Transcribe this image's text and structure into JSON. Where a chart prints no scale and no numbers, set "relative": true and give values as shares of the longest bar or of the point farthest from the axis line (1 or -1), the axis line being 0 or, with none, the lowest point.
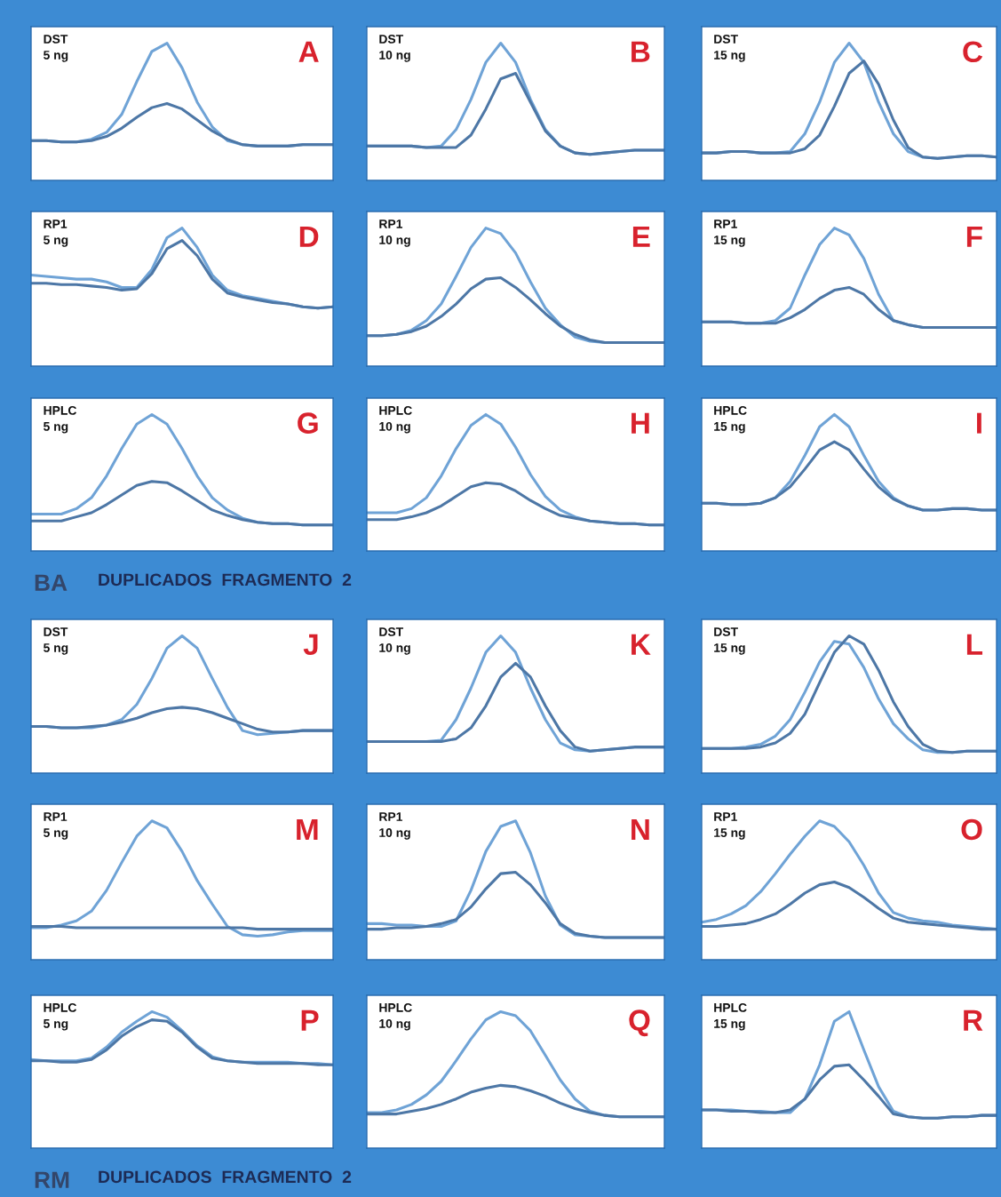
{
  "chart_data": [
    {
      "type": "line",
      "relative": true,
      "categories": [
        null,
        null,
        null,
        null,
        null,
        null,
        null,
        null,
        null,
        null,
        null,
        null,
        null,
        null,
        null,
        null,
        null,
        null,
        null,
        null,
        null
      ],
      "series": [
        {
          "color": "#6fa3d6",
          "values": [
            0.29,
            0.29,
            0.28,
            0.28,
            0.3,
            0.35,
            0.48,
            0.72,
            0.94,
            1,
            0.82,
            0.57,
            0.39,
            0.29,
            0.26,
            0.25,
            0.25,
            0.25,
            0.26,
            0.26,
            0.26
          ]
        },
        {
          "color": "#4d77a6",
          "values": [
            0.29,
            0.29,
            0.28,
            0.28,
            0.29,
            0.32,
            0.38,
            0.46,
            0.53,
            0.56,
            0.52,
            0.44,
            0.36,
            0.3,
            0.26,
            0.25,
            0.25,
            0.25,
            0.26,
            0.26,
            0.26
          ]
        }
      ],
      "annotations": [
        "DST",
        "5 ng",
        "A"
      ]
    },
    {
      "type": "line",
      "relative": true,
      "categories": [
        null,
        null,
        null,
        null,
        null,
        null,
        null,
        null,
        null,
        null,
        null,
        null,
        null,
        null,
        null,
        null,
        null,
        null,
        null,
        null,
        null
      ],
      "series": [
        {
          "color": "#6fa3d6",
          "values": [
            0.25,
            0.25,
            0.25,
            0.25,
            0.24,
            0.25,
            0.37,
            0.59,
            0.86,
            1,
            0.86,
            0.59,
            0.37,
            0.25,
            0.2,
            0.19,
            0.2,
            0.21,
            0.22,
            0.22,
            0.22
          ]
        },
        {
          "color": "#4d77a6",
          "values": [
            0.25,
            0.25,
            0.25,
            0.25,
            0.24,
            0.24,
            0.24,
            0.33,
            0.52,
            0.74,
            0.78,
            0.57,
            0.36,
            0.25,
            0.2,
            0.19,
            0.2,
            0.21,
            0.22,
            0.22,
            0.22
          ]
        }
      ],
      "annotations": [
        "DST",
        "10 ng",
        "B"
      ]
    },
    {
      "type": "line",
      "relative": true,
      "categories": [
        null,
        null,
        null,
        null,
        null,
        null,
        null,
        null,
        null,
        null,
        null,
        null,
        null,
        null,
        null,
        null,
        null,
        null,
        null,
        null,
        null
      ],
      "series": [
        {
          "color": "#6fa3d6",
          "values": [
            0.2,
            0.2,
            0.21,
            0.21,
            0.2,
            0.2,
            0.21,
            0.34,
            0.57,
            0.86,
            1,
            0.86,
            0.57,
            0.34,
            0.21,
            0.17,
            0.16,
            0.17,
            0.18,
            0.18,
            0.17
          ]
        },
        {
          "color": "#4d77a6",
          "values": [
            0.2,
            0.2,
            0.21,
            0.21,
            0.2,
            0.2,
            0.2,
            0.23,
            0.33,
            0.54,
            0.78,
            0.87,
            0.7,
            0.44,
            0.24,
            0.17,
            0.16,
            0.17,
            0.18,
            0.18,
            0.17
          ]
        }
      ],
      "annotations": [
        "DST",
        "15 ng",
        "C"
      ]
    },
    {
      "type": "line",
      "relative": true,
      "categories": [
        null,
        null,
        null,
        null,
        null,
        null,
        null,
        null,
        null,
        null,
        null,
        null,
        null,
        null,
        null,
        null,
        null,
        null,
        null,
        null,
        null
      ],
      "series": [
        {
          "color": "#6fa3d6",
          "values": [
            0.66,
            0.65,
            0.64,
            0.63,
            0.63,
            0.61,
            0.57,
            0.57,
            0.7,
            0.93,
            1,
            0.86,
            0.66,
            0.55,
            0.51,
            0.49,
            0.47,
            0.45,
            0.43,
            0.42,
            0.43
          ]
        },
        {
          "color": "#4d77a6",
          "values": [
            0.6,
            0.6,
            0.59,
            0.59,
            0.58,
            0.57,
            0.55,
            0.56,
            0.67,
            0.85,
            0.91,
            0.8,
            0.63,
            0.53,
            0.5,
            0.48,
            0.46,
            0.45,
            0.43,
            0.42,
            0.43
          ]
        }
      ],
      "annotations": [
        "RP1",
        "5 ng",
        "D"
      ]
    },
    {
      "type": "line",
      "relative": true,
      "categories": [
        null,
        null,
        null,
        null,
        null,
        null,
        null,
        null,
        null,
        null,
        null,
        null,
        null,
        null,
        null,
        null,
        null,
        null,
        null,
        null,
        null
      ],
      "series": [
        {
          "color": "#6fa3d6",
          "values": [
            0.22,
            0.22,
            0.23,
            0.26,
            0.33,
            0.45,
            0.65,
            0.86,
            1,
            0.96,
            0.82,
            0.61,
            0.42,
            0.3,
            0.21,
            0.18,
            0.17,
            0.17,
            0.17,
            0.17,
            0.17
          ]
        },
        {
          "color": "#4d77a6",
          "values": [
            0.22,
            0.22,
            0.23,
            0.25,
            0.29,
            0.36,
            0.45,
            0.56,
            0.63,
            0.64,
            0.57,
            0.48,
            0.38,
            0.29,
            0.23,
            0.19,
            0.17,
            0.17,
            0.17,
            0.17,
            0.17
          ]
        }
      ],
      "annotations": [
        "RP1",
        "10 ng",
        "E"
      ]
    },
    {
      "type": "line",
      "relative": true,
      "categories": [
        null,
        null,
        null,
        null,
        null,
        null,
        null,
        null,
        null,
        null,
        null,
        null,
        null,
        null,
        null,
        null,
        null,
        null,
        null,
        null,
        null
      ],
      "series": [
        {
          "color": "#6fa3d6",
          "values": [
            0.32,
            0.32,
            0.32,
            0.31,
            0.31,
            0.33,
            0.42,
            0.66,
            0.88,
            1,
            0.95,
            0.78,
            0.52,
            0.33,
            0.3,
            0.28,
            0.28,
            0.28,
            0.28,
            0.28,
            0.28
          ]
        },
        {
          "color": "#4d77a6",
          "values": [
            0.32,
            0.32,
            0.32,
            0.31,
            0.31,
            0.31,
            0.35,
            0.41,
            0.49,
            0.55,
            0.57,
            0.52,
            0.41,
            0.33,
            0.3,
            0.28,
            0.28,
            0.28,
            0.28,
            0.28,
            0.28
          ]
        }
      ],
      "annotations": [
        "RP1",
        "15 ng",
        "F"
      ]
    },
    {
      "type": "line",
      "relative": true,
      "categories": [
        null,
        null,
        null,
        null,
        null,
        null,
        null,
        null,
        null,
        null,
        null,
        null,
        null,
        null,
        null,
        null,
        null,
        null,
        null,
        null,
        null
      ],
      "series": [
        {
          "color": "#6fa3d6",
          "values": [
            0.27,
            0.27,
            0.27,
            0.31,
            0.39,
            0.55,
            0.75,
            0.93,
            1,
            0.93,
            0.75,
            0.55,
            0.39,
            0.3,
            0.24,
            0.21,
            0.2,
            0.2,
            0.19,
            0.19,
            0.19
          ]
        },
        {
          "color": "#4d77a6",
          "values": [
            0.22,
            0.22,
            0.22,
            0.25,
            0.28,
            0.34,
            0.41,
            0.48,
            0.51,
            0.5,
            0.44,
            0.37,
            0.3,
            0.26,
            0.23,
            0.21,
            0.2,
            0.2,
            0.19,
            0.19,
            0.19
          ]
        }
      ],
      "annotations": [
        "HPLC",
        "5 ng",
        "G",
        "BA",
        "DUPLICADOS  FRAGMENTO  2"
      ]
    },
    {
      "type": "line",
      "relative": true,
      "categories": [
        null,
        null,
        null,
        null,
        null,
        null,
        null,
        null,
        null,
        null,
        null,
        null,
        null,
        null,
        null,
        null,
        null,
        null,
        null,
        null,
        null
      ],
      "series": [
        {
          "color": "#6fa3d6",
          "values": [
            0.28,
            0.28,
            0.28,
            0.31,
            0.39,
            0.55,
            0.75,
            0.92,
            1,
            0.93,
            0.76,
            0.56,
            0.4,
            0.3,
            0.25,
            0.22,
            0.21,
            0.2,
            0.2,
            0.19,
            0.19
          ]
        },
        {
          "color": "#4d77a6",
          "values": [
            0.23,
            0.23,
            0.23,
            0.25,
            0.28,
            0.33,
            0.4,
            0.47,
            0.5,
            0.49,
            0.44,
            0.37,
            0.31,
            0.26,
            0.24,
            0.22,
            0.21,
            0.2,
            0.2,
            0.19,
            0.19
          ]
        }
      ],
      "annotations": [
        "HPLC",
        "10 ng",
        "H"
      ]
    },
    {
      "type": "line",
      "relative": true,
      "categories": [
        null,
        null,
        null,
        null,
        null,
        null,
        null,
        null,
        null,
        null,
        null,
        null,
        null,
        null,
        null,
        null,
        null,
        null,
        null,
        null,
        null
      ],
      "series": [
        {
          "color": "#6fa3d6",
          "values": [
            0.35,
            0.35,
            0.34,
            0.34,
            0.35,
            0.39,
            0.51,
            0.7,
            0.91,
            1,
            0.91,
            0.7,
            0.51,
            0.39,
            0.33,
            0.3,
            0.3,
            0.31,
            0.31,
            0.3,
            0.3
          ]
        },
        {
          "color": "#4d77a6",
          "values": [
            0.35,
            0.35,
            0.34,
            0.34,
            0.35,
            0.39,
            0.47,
            0.6,
            0.74,
            0.8,
            0.74,
            0.6,
            0.47,
            0.38,
            0.33,
            0.3,
            0.3,
            0.31,
            0.31,
            0.3,
            0.3
          ]
        }
      ],
      "annotations": [
        "HPLC",
        "15 ng",
        "I"
      ]
    },
    {
      "type": "line",
      "relative": true,
      "categories": [
        null,
        null,
        null,
        null,
        null,
        null,
        null,
        null,
        null,
        null,
        null,
        null,
        null,
        null,
        null,
        null,
        null,
        null,
        null,
        null,
        null
      ],
      "series": [
        {
          "color": "#6fa3d6",
          "values": [
            0.34,
            0.34,
            0.33,
            0.33,
            0.33,
            0.35,
            0.39,
            0.5,
            0.69,
            0.91,
            1,
            0.91,
            0.69,
            0.48,
            0.31,
            0.28,
            0.29,
            0.3,
            0.31,
            0.31,
            0.31
          ]
        },
        {
          "color": "#4d77a6",
          "values": [
            0.34,
            0.34,
            0.33,
            0.33,
            0.34,
            0.35,
            0.37,
            0.4,
            0.44,
            0.47,
            0.48,
            0.47,
            0.44,
            0.4,
            0.36,
            0.32,
            0.3,
            0.3,
            0.31,
            0.31,
            0.31
          ]
        }
      ],
      "annotations": [
        "DST",
        "5 ng",
        "J"
      ]
    },
    {
      "type": "line",
      "relative": true,
      "categories": [
        null,
        null,
        null,
        null,
        null,
        null,
        null,
        null,
        null,
        null,
        null,
        null,
        null,
        null,
        null,
        null,
        null,
        null,
        null,
        null,
        null
      ],
      "series": [
        {
          "color": "#6fa3d6",
          "values": [
            0.23,
            0.23,
            0.23,
            0.23,
            0.23,
            0.24,
            0.39,
            0.62,
            0.88,
            1,
            0.88,
            0.62,
            0.39,
            0.22,
            0.17,
            0.16,
            0.17,
            0.18,
            0.19,
            0.19,
            0.19
          ]
        },
        {
          "color": "#4d77a6",
          "values": [
            0.23,
            0.23,
            0.23,
            0.23,
            0.23,
            0.23,
            0.25,
            0.33,
            0.49,
            0.7,
            0.8,
            0.7,
            0.49,
            0.31,
            0.19,
            0.16,
            0.17,
            0.18,
            0.19,
            0.19,
            0.19
          ]
        }
      ],
      "annotations": [
        "DST",
        "10 ng",
        "K"
      ]
    },
    {
      "type": "line",
      "relative": true,
      "categories": [
        null,
        null,
        null,
        null,
        null,
        null,
        null,
        null,
        null,
        null,
        null,
        null,
        null,
        null,
        null,
        null,
        null,
        null,
        null,
        null,
        null
      ],
      "series": [
        {
          "color": "#6fa3d6",
          "values": [
            0.18,
            0.18,
            0.18,
            0.19,
            0.21,
            0.27,
            0.39,
            0.59,
            0.81,
            0.96,
            0.94,
            0.77,
            0.54,
            0.36,
            0.25,
            0.17,
            0.15,
            0.15,
            0.16,
            0.16,
            0.16
          ]
        },
        {
          "color": "#4d77a6",
          "values": [
            0.18,
            0.18,
            0.18,
            0.18,
            0.19,
            0.22,
            0.29,
            0.43,
            0.66,
            0.88,
            1,
            0.94,
            0.75,
            0.52,
            0.34,
            0.21,
            0.16,
            0.15,
            0.16,
            0.16,
            0.16
          ]
        }
      ],
      "annotations": [
        "DST",
        "15 ng",
        "L"
      ]
    },
    {
      "type": "line",
      "relative": true,
      "categories": [
        null,
        null,
        null,
        null,
        null,
        null,
        null,
        null,
        null,
        null,
        null,
        null,
        null,
        null,
        null,
        null,
        null,
        null,
        null,
        null,
        null
      ],
      "series": [
        {
          "color": "#6fa3d6",
          "values": [
            0.23,
            0.23,
            0.25,
            0.28,
            0.35,
            0.5,
            0.7,
            0.89,
            1,
            0.95,
            0.78,
            0.57,
            0.4,
            0.24,
            0.18,
            0.17,
            0.18,
            0.2,
            0.21,
            0.21,
            0.21
          ]
        },
        {
          "color": "#4d77a6",
          "values": [
            0.24,
            0.24,
            0.24,
            0.23,
            0.23,
            0.23,
            0.23,
            0.23,
            0.23,
            0.23,
            0.23,
            0.23,
            0.23,
            0.23,
            0.23,
            0.22,
            0.22,
            0.22,
            0.22,
            0.22,
            0.22
          ]
        }
      ],
      "annotations": [
        "RP1",
        "5 ng",
        "M"
      ]
    },
    {
      "type": "line",
      "relative": true,
      "categories": [
        null,
        null,
        null,
        null,
        null,
        null,
        null,
        null,
        null,
        null,
        null,
        null,
        null,
        null,
        null,
        null,
        null,
        null,
        null,
        null,
        null
      ],
      "series": [
        {
          "color": "#6fa3d6",
          "values": [
            0.26,
            0.26,
            0.25,
            0.25,
            0.24,
            0.24,
            0.28,
            0.5,
            0.78,
            0.96,
            1,
            0.77,
            0.46,
            0.25,
            0.18,
            0.17,
            0.16,
            0.16,
            0.16,
            0.16,
            0.16
          ]
        },
        {
          "color": "#4d77a6",
          "values": [
            0.22,
            0.22,
            0.23,
            0.23,
            0.24,
            0.26,
            0.29,
            0.38,
            0.51,
            0.62,
            0.63,
            0.54,
            0.41,
            0.26,
            0.19,
            0.17,
            0.16,
            0.16,
            0.16,
            0.16,
            0.16
          ]
        }
      ],
      "annotations": [
        "RP1",
        "10 ng",
        "N"
      ]
    },
    {
      "type": "line",
      "relative": true,
      "categories": [
        null,
        null,
        null,
        null,
        null,
        null,
        null,
        null,
        null,
        null,
        null,
        null,
        null,
        null,
        null,
        null,
        null,
        null,
        null,
        null,
        null
      ],
      "series": [
        {
          "color": "#6fa3d6",
          "values": [
            0.27,
            0.29,
            0.33,
            0.39,
            0.49,
            0.62,
            0.76,
            0.89,
            1,
            0.96,
            0.85,
            0.68,
            0.48,
            0.34,
            0.3,
            0.28,
            0.27,
            0.25,
            0.24,
            0.23,
            0.22
          ]
        },
        {
          "color": "#4d77a6",
          "values": [
            0.24,
            0.24,
            0.25,
            0.26,
            0.29,
            0.33,
            0.4,
            0.48,
            0.54,
            0.56,
            0.52,
            0.45,
            0.37,
            0.3,
            0.27,
            0.26,
            0.25,
            0.24,
            0.23,
            0.22,
            0.22
          ]
        }
      ],
      "annotations": [
        "RP1",
        "15 ng",
        "O"
      ]
    },
    {
      "type": "line",
      "relative": true,
      "categories": [
        null,
        null,
        null,
        null,
        null,
        null,
        null,
        null,
        null,
        null,
        null,
        null,
        null,
        null,
        null,
        null,
        null,
        null,
        null,
        null,
        null
      ],
      "series": [
        {
          "color": "#6fa3d6",
          "values": [
            0.65,
            0.64,
            0.64,
            0.64,
            0.66,
            0.74,
            0.85,
            0.93,
            1,
            0.96,
            0.86,
            0.75,
            0.67,
            0.64,
            0.63,
            0.63,
            0.63,
            0.63,
            0.62,
            0.62,
            0.61
          ]
        },
        {
          "color": "#4d77a6",
          "values": [
            0.64,
            0.64,
            0.63,
            0.63,
            0.65,
            0.72,
            0.82,
            0.89,
            0.94,
            0.93,
            0.85,
            0.74,
            0.66,
            0.64,
            0.63,
            0.62,
            0.62,
            0.62,
            0.62,
            0.61,
            0.61
          ]
        }
      ],
      "annotations": [
        "HPLC",
        "5 ng",
        "P",
        "RM",
        "DUPLICADOS  FRAGMENTO  2"
      ]
    },
    {
      "type": "line",
      "relative": true,
      "categories": [
        null,
        null,
        null,
        null,
        null,
        null,
        null,
        null,
        null,
        null,
        null,
        null,
        null,
        null,
        null,
        null,
        null,
        null,
        null,
        null,
        null
      ],
      "series": [
        {
          "color": "#6fa3d6",
          "values": [
            0.26,
            0.26,
            0.28,
            0.32,
            0.39,
            0.49,
            0.64,
            0.8,
            0.94,
            1,
            0.97,
            0.86,
            0.68,
            0.5,
            0.36,
            0.27,
            0.24,
            0.23,
            0.23,
            0.23,
            0.23
          ]
        },
        {
          "color": "#4d77a6",
          "values": [
            0.25,
            0.25,
            0.25,
            0.27,
            0.29,
            0.32,
            0.36,
            0.41,
            0.44,
            0.46,
            0.45,
            0.42,
            0.38,
            0.33,
            0.29,
            0.26,
            0.24,
            0.23,
            0.23,
            0.23,
            0.23
          ]
        }
      ],
      "annotations": [
        "HPLC",
        "10 ng",
        "Q"
      ]
    },
    {
      "type": "line",
      "relative": true,
      "categories": [
        null,
        null,
        null,
        null,
        null,
        null,
        null,
        null,
        null,
        null,
        null,
        null,
        null,
        null,
        null,
        null,
        null,
        null,
        null,
        null,
        null
      ],
      "series": [
        {
          "color": "#6fa3d6",
          "values": [
            0.28,
            0.28,
            0.28,
            0.27,
            0.27,
            0.26,
            0.26,
            0.36,
            0.61,
            0.93,
            1,
            0.72,
            0.45,
            0.27,
            0.23,
            0.22,
            0.22,
            0.23,
            0.23,
            0.24,
            0.24
          ]
        },
        {
          "color": "#4d77a6",
          "values": [
            0.28,
            0.28,
            0.27,
            0.27,
            0.26,
            0.26,
            0.28,
            0.36,
            0.5,
            0.6,
            0.61,
            0.5,
            0.38,
            0.25,
            0.23,
            0.22,
            0.22,
            0.23,
            0.23,
            0.24,
            0.24
          ]
        }
      ],
      "annotations": [
        "HPLC",
        "15 ng",
        "R"
      ]
    }
  ]
}
